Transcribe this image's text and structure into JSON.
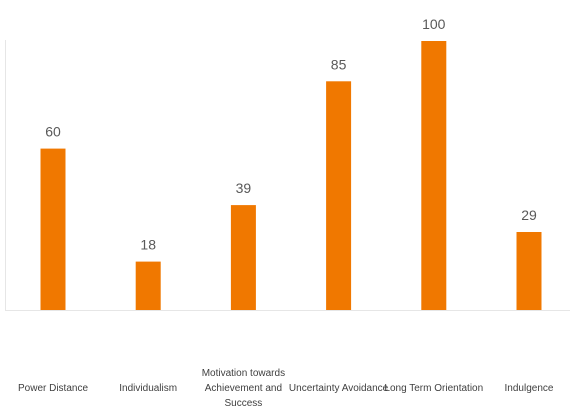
{
  "chart_data": {
    "type": "bar",
    "categories": [
      "Power Distance",
      "Individualism",
      "Motivation towards Achievement and Success",
      "Uncertainty Avoidance",
      "Long Term Orientation",
      "Indulgence"
    ],
    "values": [
      60,
      18,
      39,
      85,
      100,
      29
    ],
    "title": "",
    "xlabel": "",
    "ylabel": "",
    "ylim": [
      0,
      100
    ],
    "bar_color": "#f07800",
    "data_labels": true,
    "grid": false,
    "legend": false
  }
}
